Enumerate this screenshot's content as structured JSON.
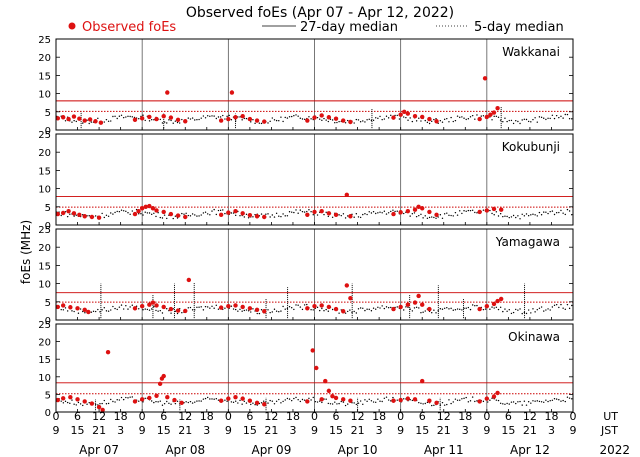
{
  "chart_data": {
    "type": "scatter",
    "title": "Observed foEs (Apr 07 - Apr 12, 2022)",
    "ylabel": "foEs (MHz)",
    "legend": {
      "observed": "Observed foEs",
      "median27": "27-day median",
      "median5": "5-day median",
      "placement": "top"
    },
    "colors": {
      "observed": "#dd1111",
      "median": "#cc0000",
      "trace": "#000000",
      "daygrid": "#555555"
    },
    "ylim": [
      0,
      25
    ],
    "yticks": [
      0,
      5,
      10,
      15,
      20,
      25
    ],
    "xlim_hours": [
      0,
      144
    ],
    "x_ut_ticks": [
      "0",
      "6",
      "12",
      "18",
      "0",
      "6",
      "12",
      "18",
      "0",
      "6",
      "12",
      "18",
      "0",
      "6",
      "12",
      "18",
      "0",
      "6",
      "12",
      "18",
      "0",
      "6",
      "12",
      "18",
      "0"
    ],
    "x_jst_ticks": [
      "9",
      "15",
      "21",
      "3",
      "9",
      "15",
      "21",
      "3",
      "9",
      "15",
      "21",
      "3",
      "9",
      "15",
      "21",
      "3",
      "9",
      "15",
      "21",
      "3",
      "9",
      "15",
      "21",
      "3",
      "9"
    ],
    "ut_label": "UT",
    "jst_label": "JST",
    "days": [
      "Apr 07",
      "Apr 08",
      "Apr 09",
      "Apr 10",
      "Apr 11",
      "Apr 12"
    ],
    "year": "2022",
    "stations": [
      {
        "name": "Wakkanai",
        "median27": 8.0,
        "median5": 5.1,
        "base": 3.0,
        "gaps": [],
        "spikes": [
          [
            7.0,
            5.0
          ],
          [
            30.0,
            4.5
          ],
          [
            50.0,
            4.5
          ],
          [
            88.0,
            6.0
          ],
          [
            124.0,
            6.5
          ]
        ],
        "observed": [
          [
            0.5,
            3.2
          ],
          [
            2,
            3.5
          ],
          [
            3.5,
            3.0
          ],
          [
            5,
            3.7
          ],
          [
            6.5,
            3.1
          ],
          [
            8,
            2.6
          ],
          [
            9.5,
            2.9
          ],
          [
            11,
            2.4
          ],
          [
            12.5,
            2.0
          ],
          [
            22,
            2.8
          ],
          [
            24,
            3.2
          ],
          [
            26,
            3.6
          ],
          [
            28,
            3.0
          ],
          [
            30,
            3.8
          ],
          [
            31,
            10.3
          ],
          [
            32,
            3.4
          ],
          [
            34,
            2.8
          ],
          [
            36,
            2.4
          ],
          [
            46,
            2.6
          ],
          [
            48,
            3.0
          ],
          [
            49,
            10.3
          ],
          [
            50,
            3.5
          ],
          [
            52,
            3.8
          ],
          [
            54,
            3.0
          ],
          [
            56,
            2.6
          ],
          [
            58,
            2.3
          ],
          [
            70,
            2.6
          ],
          [
            72,
            3.4
          ],
          [
            74,
            4.0
          ],
          [
            76,
            3.5
          ],
          [
            78,
            3.1
          ],
          [
            80,
            2.6
          ],
          [
            82,
            2.2
          ],
          [
            94,
            3.4
          ],
          [
            96,
            4.2
          ],
          [
            97,
            5.0
          ],
          [
            98,
            4.5
          ],
          [
            100,
            3.8
          ],
          [
            102,
            3.6
          ],
          [
            104,
            3.0
          ],
          [
            106,
            2.4
          ],
          [
            118,
            3.0
          ],
          [
            119.5,
            14.2
          ],
          [
            120,
            3.6
          ],
          [
            121,
            4.2
          ],
          [
            122,
            4.8
          ],
          [
            123,
            6.0
          ]
        ]
      },
      {
        "name": "Kokubunji",
        "median27": 7.8,
        "median5": 4.9,
        "base": 3.0,
        "gaps": [],
        "spikes": [],
        "observed": [
          [
            0.5,
            3.0
          ],
          [
            2,
            3.3
          ],
          [
            3.5,
            3.8
          ],
          [
            5,
            3.2
          ],
          [
            6.5,
            2.8
          ],
          [
            8,
            2.4
          ],
          [
            10,
            2.2
          ],
          [
            12,
            2.0
          ],
          [
            22,
            3.0
          ],
          [
            23,
            3.8
          ],
          [
            24,
            4.6
          ],
          [
            25,
            5.0
          ],
          [
            26,
            5.2
          ],
          [
            27,
            4.6
          ],
          [
            28,
            4.0
          ],
          [
            30,
            3.6
          ],
          [
            32,
            3.0
          ],
          [
            34,
            2.6
          ],
          [
            36,
            2.2
          ],
          [
            46,
            2.8
          ],
          [
            48,
            3.4
          ],
          [
            50,
            3.8
          ],
          [
            52,
            3.2
          ],
          [
            54,
            2.7
          ],
          [
            56,
            2.4
          ],
          [
            58,
            2.2
          ],
          [
            70,
            2.8
          ],
          [
            72,
            3.6
          ],
          [
            74,
            3.8
          ],
          [
            76,
            3.2
          ],
          [
            78,
            2.8
          ],
          [
            81,
            8.3
          ],
          [
            82,
            2.4
          ],
          [
            94,
            3.0
          ],
          [
            96,
            3.5
          ],
          [
            98,
            3.8
          ],
          [
            100,
            4.2
          ],
          [
            101,
            5.0
          ],
          [
            102,
            4.6
          ],
          [
            104,
            3.6
          ],
          [
            106,
            2.8
          ],
          [
            118,
            3.6
          ],
          [
            120,
            4.0
          ],
          [
            122,
            4.4
          ],
          [
            124,
            4.2
          ]
        ]
      },
      {
        "name": "Yamagawa",
        "median27": 7.5,
        "median5": 4.9,
        "base": 3.0,
        "gaps": [],
        "spikes": [
          [
            12.5,
            10.0
          ],
          [
            27.0,
            7.0
          ],
          [
            33.0,
            10.0
          ],
          [
            38.5,
            10.2
          ],
          [
            58.5,
            6.0
          ],
          [
            64.5,
            9.0
          ],
          [
            82.5,
            10.0
          ],
          [
            98.5,
            7.0
          ],
          [
            106.5,
            9.5
          ],
          [
            113.5,
            6.0
          ],
          [
            130.5,
            10.0
          ]
        ],
        "observed": [
          [
            0.5,
            3.6
          ],
          [
            2,
            4.0
          ],
          [
            4,
            3.5
          ],
          [
            6,
            3.2
          ],
          [
            8,
            2.8
          ],
          [
            9,
            2.2
          ],
          [
            22,
            3.2
          ],
          [
            24,
            3.8
          ],
          [
            26,
            4.2
          ],
          [
            27,
            4.8
          ],
          [
            28,
            4.0
          ],
          [
            30,
            3.6
          ],
          [
            32,
            3.0
          ],
          [
            34,
            2.6
          ],
          [
            36,
            2.5
          ],
          [
            37,
            11.0
          ],
          [
            46,
            3.4
          ],
          [
            48,
            3.8
          ],
          [
            50,
            4.0
          ],
          [
            52,
            3.6
          ],
          [
            54,
            3.2
          ],
          [
            56,
            2.8
          ],
          [
            58,
            2.4
          ],
          [
            70,
            3.2
          ],
          [
            72,
            3.8
          ],
          [
            74,
            4.0
          ],
          [
            76,
            3.6
          ],
          [
            78,
            3.0
          ],
          [
            80,
            2.4
          ],
          [
            81,
            9.5
          ],
          [
            82,
            6.0
          ],
          [
            94,
            3.0
          ],
          [
            96,
            3.6
          ],
          [
            98,
            4.2
          ],
          [
            100,
            4.8
          ],
          [
            101,
            6.6
          ],
          [
            102,
            4.2
          ],
          [
            104,
            3.0
          ],
          [
            118,
            3.0
          ],
          [
            120,
            3.8
          ],
          [
            122,
            4.4
          ],
          [
            123,
            5.2
          ],
          [
            124,
            5.8
          ]
        ]
      },
      {
        "name": "Okinawa",
        "median27": 8.3,
        "median5": 5.2,
        "base": 3.0,
        "gaps": [],
        "spikes": [
          [
            11.0,
            3.5
          ],
          [
            34.5,
            3.5
          ],
          [
            58.5,
            4.0
          ],
          [
            84.0,
            4.0
          ],
          [
            107.0,
            4.0
          ]
        ],
        "observed": [
          [
            0.5,
            3.4
          ],
          [
            2,
            3.9
          ],
          [
            4,
            4.2
          ],
          [
            6,
            3.6
          ],
          [
            8,
            3.0
          ],
          [
            10,
            2.4
          ],
          [
            12,
            1.4
          ],
          [
            13,
            0.6
          ],
          [
            14.5,
            17.0
          ],
          [
            22,
            3.0
          ],
          [
            24,
            3.6
          ],
          [
            26,
            4.0
          ],
          [
            28,
            4.6
          ],
          [
            29,
            8.0
          ],
          [
            29.5,
            9.5
          ],
          [
            30,
            10.2
          ],
          [
            31,
            4.2
          ],
          [
            33,
            3.4
          ],
          [
            35,
            2.6
          ],
          [
            46,
            3.2
          ],
          [
            48,
            3.8
          ],
          [
            50,
            4.2
          ],
          [
            52,
            3.8
          ],
          [
            54,
            3.2
          ],
          [
            56,
            2.6
          ],
          [
            58,
            2.2
          ],
          [
            70,
            3.0
          ],
          [
            71.5,
            17.5
          ],
          [
            72.5,
            12.5
          ],
          [
            74,
            3.6
          ],
          [
            75,
            8.8
          ],
          [
            76,
            6.0
          ],
          [
            77,
            4.5
          ],
          [
            78,
            4.0
          ],
          [
            80,
            3.6
          ],
          [
            82,
            3.2
          ],
          [
            94,
            3.2
          ],
          [
            96,
            3.4
          ],
          [
            98,
            3.8
          ],
          [
            100,
            3.6
          ],
          [
            102,
            8.8
          ],
          [
            104,
            3.2
          ],
          [
            106,
            2.6
          ],
          [
            118,
            3.0
          ],
          [
            120,
            3.8
          ],
          [
            122,
            4.4
          ],
          [
            123,
            5.4
          ]
        ]
      }
    ]
  }
}
